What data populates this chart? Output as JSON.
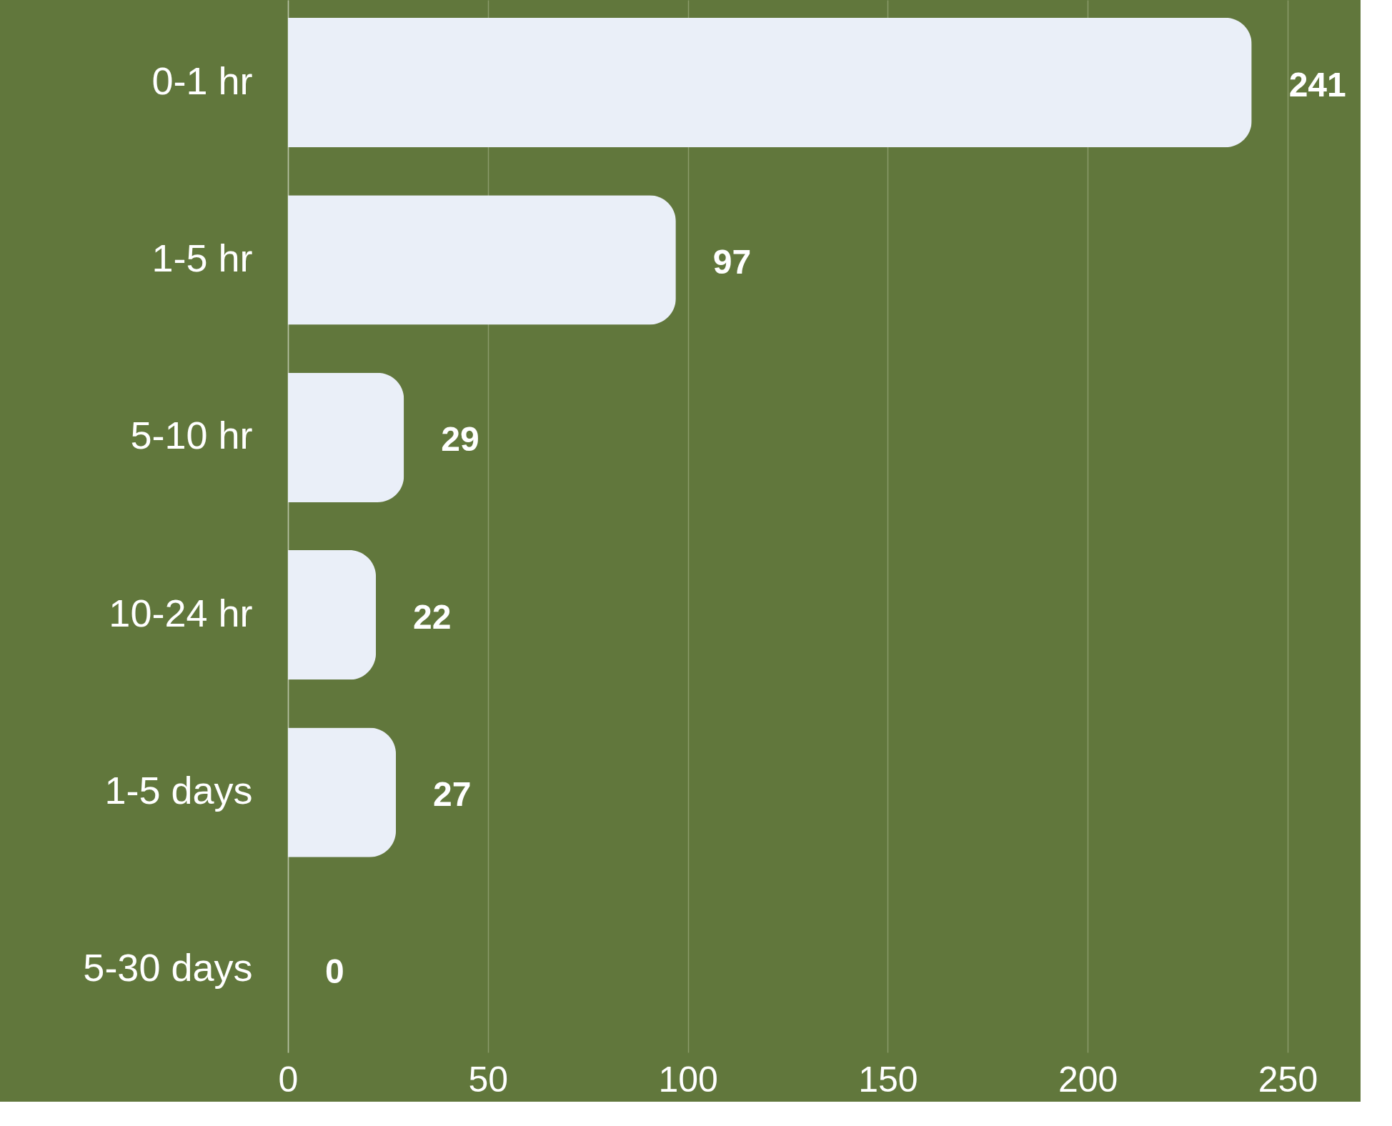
{
  "chart_data": {
    "type": "bar",
    "orientation": "horizontal",
    "categories": [
      "0-1 hr",
      "1-5 hr",
      "5-10 hr",
      "10-24 hr",
      "1-5 days",
      "5-30 days"
    ],
    "values": [
      241,
      97,
      29,
      22,
      27,
      0
    ],
    "color": "#eaeff8",
    "xlim": [
      0,
      250
    ],
    "xticks": [
      0,
      50,
      100,
      150,
      200,
      250
    ],
    "grid": "x",
    "data_labels": true
  }
}
